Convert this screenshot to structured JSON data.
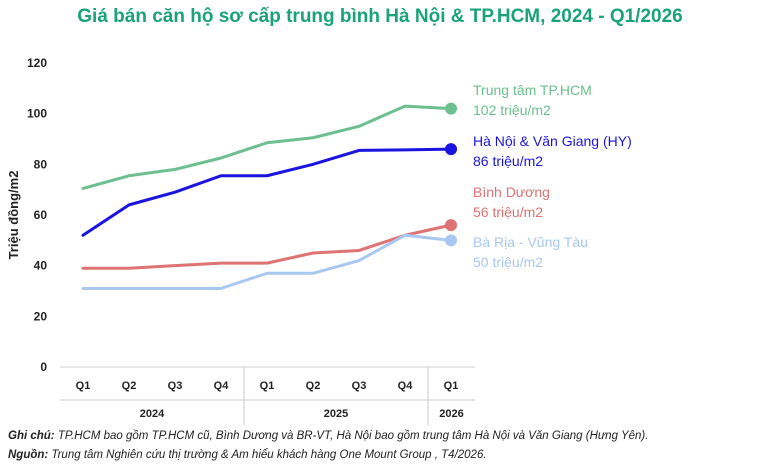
{
  "title": "Giá bán căn hộ sơ cấp trung bình Hà Nội & TP.HCM, 2024 - Q1/2026",
  "chart_data": {
    "type": "line",
    "ylabel": "Triệu đồng/m2",
    "ylim": [
      0,
      120
    ],
    "yticks": [
      "0",
      "20",
      "40",
      "60",
      "80",
      "100",
      "120"
    ],
    "grid": false,
    "categories": [
      "Q1",
      "Q2",
      "Q3",
      "Q4",
      "Q1",
      "Q2",
      "Q3",
      "Q4",
      "Q1"
    ],
    "year_groups": [
      {
        "label": "2024",
        "span": 4
      },
      {
        "label": "2025",
        "span": 4
      },
      {
        "label": "2026",
        "span": 1
      }
    ],
    "series": [
      {
        "name": "Trung tâm TP.HCM",
        "value_label": "102 triệu/m2",
        "color": "#6cbf8e",
        "values": [
          70.5,
          75.5,
          78,
          82.5,
          88.5,
          90.5,
          95,
          103,
          102
        ]
      },
      {
        "name": "Hà Nội & Văn Giang (HY)",
        "value_label": "86 triệu/m2",
        "color": "#1a14e0",
        "values": [
          52,
          64,
          69,
          75.5,
          75.5,
          80,
          85.5,
          85.7,
          86
        ]
      },
      {
        "name": "Bình Dương",
        "value_label": "56 triệu/m2",
        "color": "#df7272",
        "values": [
          39,
          39,
          40,
          41,
          41,
          45,
          46,
          52,
          56
        ]
      },
      {
        "name": "Bà Rịa - Vũng Tàu",
        "value_label": "50 triệu/m2",
        "color": "#a8c8f2",
        "values": [
          31,
          31,
          31,
          31,
          37,
          37,
          42,
          52,
          50
        ]
      }
    ]
  },
  "notes": {
    "note_label": "Ghi chú:",
    "note_text": " TP.HCM bao gồm TP.HCM cũ, Bình Dương và BR-VT, Hà Nội bao gồm trung tâm Hà Nội và Văn Giang (Hưng Yên).",
    "source_label": "Nguồn:",
    "source_text": " Trung tâm Nghiên cứu thị trường & Am hiểu khách hàng One Mount Group , T4/2026."
  }
}
